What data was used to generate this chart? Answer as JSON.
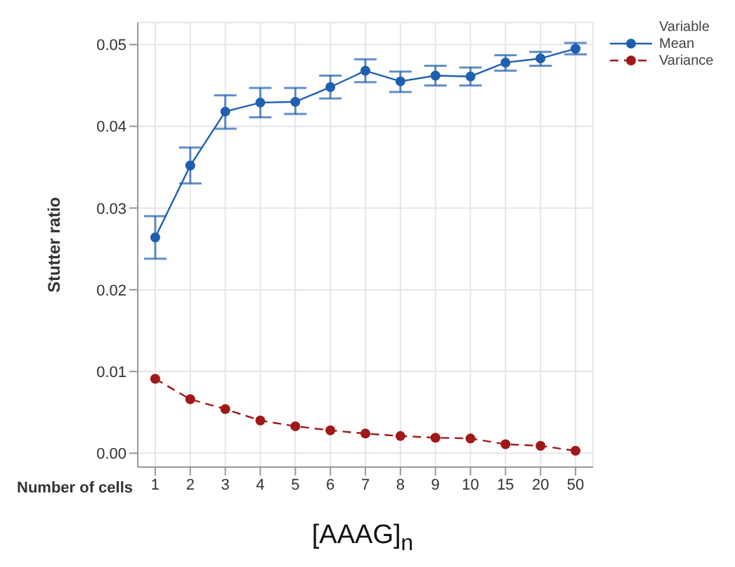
{
  "chart_data": {
    "type": "line",
    "xlabel": "Number of cells",
    "ylabel": "Stutter ratio",
    "legend_title": "Variable",
    "annotations": [
      "[AAAG]$_{n}$"
    ],
    "categories": [
      "1",
      "2",
      "3",
      "4",
      "5",
      "6",
      "7",
      "8",
      "9",
      "10",
      "15",
      "20",
      "50"
    ],
    "series": [
      {
        "name": "Mean",
        "color": "#1f5fb0",
        "line_style": "solid",
        "values": [
          0.0264,
          0.0352,
          0.0418,
          0.0429,
          0.043,
          0.0448,
          0.0468,
          0.0455,
          0.0462,
          0.0461,
          0.0478,
          0.0483,
          0.0495
        ],
        "errors": [
          [
            0.0238,
            0.029
          ],
          [
            0.033,
            0.0374
          ],
          [
            0.0397,
            0.0438
          ],
          [
            0.0411,
            0.0447
          ],
          [
            0.0415,
            0.0447
          ],
          [
            0.0434,
            0.0462
          ],
          [
            0.0454,
            0.0482
          ],
          [
            0.0442,
            0.0467
          ],
          [
            0.045,
            0.0474
          ],
          [
            0.045,
            0.0472
          ],
          [
            0.0468,
            0.0487
          ],
          [
            0.0474,
            0.0491
          ],
          [
            0.0488,
            0.0502
          ]
        ]
      },
      {
        "name": "Variance",
        "color": "#a01818",
        "line_style": "dashed",
        "values": [
          0.0091,
          0.0066,
          0.0054,
          0.004,
          0.0033,
          0.0028,
          0.0024,
          0.0021,
          0.0019,
          0.0018,
          0.0011,
          0.0009,
          0.0003
        ]
      }
    ],
    "ylim": [
      -0.0017,
      0.0527
    ],
    "yticks": [
      {
        "value": 0,
        "label": "0.00"
      },
      {
        "value": 0.01,
        "label": "0.01"
      },
      {
        "value": 0.02,
        "label": "0.02"
      },
      {
        "value": 0.03,
        "label": "0.03"
      },
      {
        "value": 0.04,
        "label": "0.04"
      },
      {
        "value": 0.05,
        "label": "0.05"
      }
    ],
    "grid": true,
    "legend": "top right",
    "marker": "circle"
  }
}
